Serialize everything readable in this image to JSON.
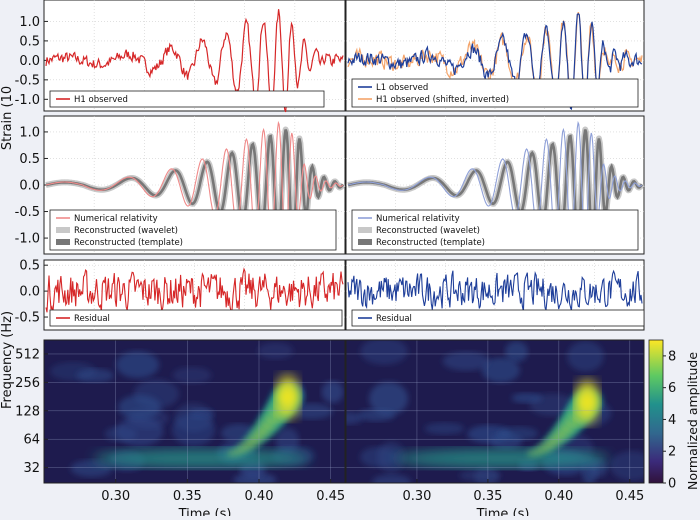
{
  "colors": {
    "h1": "#d62728",
    "l1": "#1f3f9a",
    "h1_shifted": "#f4a46a",
    "nr_h1": "#f08a8a",
    "nr_l1": "#8fa0d8",
    "wavelet_band": "#c8c8c8",
    "template_band": "#777777",
    "spec_bg": "#1e1b4e",
    "spec_peak": "#f2e51e"
  },
  "labels": {
    "y_axis_strain": "Strain (10",
    "y_axis_freq": "Frequency (Hz)",
    "colorbar_label": "Normalized amplitude",
    "x_axis_left": "Time (s)",
    "x_axis_right": "Time (s)"
  },
  "chart_data": [
    {
      "type": "line",
      "panel": "top-left",
      "ylim": [
        -1.3,
        1.55
      ],
      "yticks": [
        "1.0",
        "0.5",
        "0.0",
        "-0.5",
        "-1.0"
      ],
      "ytick_values": [
        1.0,
        0.5,
        0.0,
        -0.5,
        -1.0
      ],
      "series": [
        {
          "name": "H1 observed",
          "role": "observed_h1"
        }
      ],
      "legend": "bottom-left"
    },
    {
      "type": "line",
      "panel": "top-right",
      "ylim": [
        -1.3,
        1.55
      ],
      "series": [
        {
          "name": "L1 observed",
          "role": "observed_l1"
        },
        {
          "name": "H1 observed (shifted, inverted)",
          "role": "shifted_h1"
        }
      ],
      "legend": "bottom-left"
    },
    {
      "type": "line",
      "panel": "middle-left",
      "ylim": [
        -1.3,
        1.3
      ],
      "yticks": [
        "1.0",
        "0.5",
        "0.0",
        "-0.5",
        "-1.0"
      ],
      "ytick_values": [
        1.0,
        0.5,
        0.0,
        -0.5,
        -1.0
      ],
      "series": [
        {
          "name": "Numerical relativity",
          "role": "nr_h1"
        },
        {
          "name": "Reconstructed (wavelet)",
          "role": "wavelet"
        },
        {
          "name": "Reconstructed (template)",
          "role": "template"
        }
      ],
      "legend": "bottom-left"
    },
    {
      "type": "line",
      "panel": "middle-right",
      "ylim": [
        -1.3,
        1.3
      ],
      "series": [
        {
          "name": "Numerical relativity",
          "role": "nr_l1"
        },
        {
          "name": "Reconstructed (wavelet)",
          "role": "wavelet"
        },
        {
          "name": "Reconstructed (template)",
          "role": "template"
        }
      ],
      "legend": "bottom-left"
    },
    {
      "type": "line",
      "panel": "residual-left",
      "ylim": [
        -0.75,
        0.6
      ],
      "yticks": [
        "0.5",
        "0.0",
        "-0.5"
      ],
      "ytick_values": [
        0.5,
        0.0,
        -0.5
      ],
      "series": [
        {
          "name": "Residual",
          "role": "residual_h1"
        }
      ],
      "legend": "bottom-left"
    },
    {
      "type": "line",
      "panel": "residual-right",
      "ylim": [
        -0.75,
        0.6
      ],
      "series": [
        {
          "name": "Residual",
          "role": "residual_l1"
        }
      ],
      "legend": "bottom-left"
    },
    {
      "type": "heatmap",
      "panel": "spectrogram-left",
      "ylabel_scale": "log2",
      "yticks": [
        "512",
        "256",
        "128",
        "64",
        "32"
      ],
      "ytick_values": [
        512,
        256,
        128,
        64,
        32
      ],
      "xlim": [
        0.25,
        0.46
      ],
      "xticks": [
        "0.30",
        "0.35",
        "0.40",
        "0.45"
      ],
      "xtick_values": [
        0.3,
        0.35,
        0.4,
        0.45
      ],
      "chirp_peak_time": 0.42,
      "chirp_peak_freq": 180
    },
    {
      "type": "heatmap",
      "panel": "spectrogram-right",
      "ylabel_scale": "log2",
      "xlim": [
        0.25,
        0.46
      ],
      "xticks": [
        "0.30",
        "0.35",
        "0.40",
        "0.45"
      ],
      "xtick_values": [
        0.3,
        0.35,
        0.4,
        0.45
      ],
      "chirp_peak_time": 0.42,
      "chirp_peak_freq": 160
    }
  ],
  "colorbar": {
    "ticks": [
      "0",
      "2",
      "4",
      "6",
      "8"
    ],
    "tick_values": [
      0,
      2,
      4,
      6,
      8
    ],
    "range": [
      0,
      9
    ]
  }
}
